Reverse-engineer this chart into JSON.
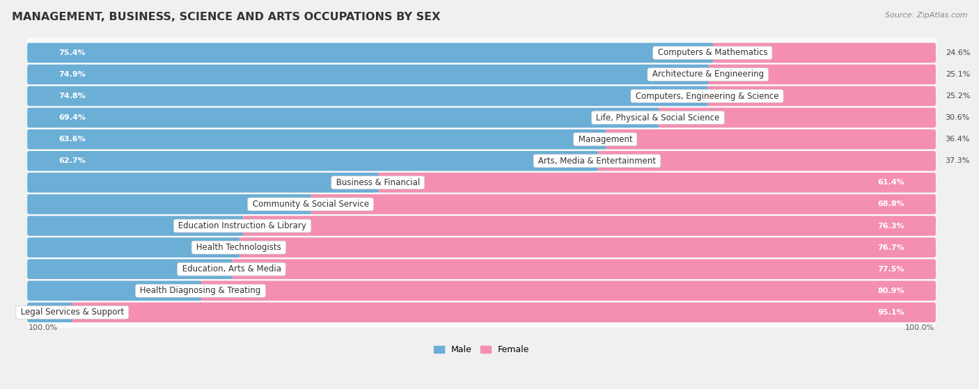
{
  "title": "MANAGEMENT, BUSINESS, SCIENCE AND ARTS OCCUPATIONS BY SEX",
  "source": "Source: ZipAtlas.com",
  "categories": [
    "Computers & Mathematics",
    "Architecture & Engineering",
    "Computers, Engineering & Science",
    "Life, Physical & Social Science",
    "Management",
    "Arts, Media & Entertainment",
    "Business & Financial",
    "Community & Social Service",
    "Education Instruction & Library",
    "Health Technologists",
    "Education, Arts & Media",
    "Health Diagnosing & Treating",
    "Legal Services & Support"
  ],
  "male_pct": [
    75.4,
    74.9,
    74.8,
    69.4,
    63.6,
    62.7,
    38.6,
    31.2,
    23.7,
    23.3,
    22.5,
    19.1,
    5.0
  ],
  "female_pct": [
    24.6,
    25.1,
    25.2,
    30.6,
    36.4,
    37.3,
    61.4,
    68.8,
    76.3,
    76.7,
    77.5,
    80.9,
    95.1
  ],
  "male_color": "#6baed6",
  "female_color": "#f48fb1",
  "bg_color": "#f0f0f0",
  "row_bg_color": "#e8e8e8",
  "row_fill_color": "#fafafa",
  "title_fontsize": 11.5,
  "label_fontsize": 8.5,
  "pct_fontsize": 8,
  "legend_fontsize": 9,
  "source_fontsize": 8
}
